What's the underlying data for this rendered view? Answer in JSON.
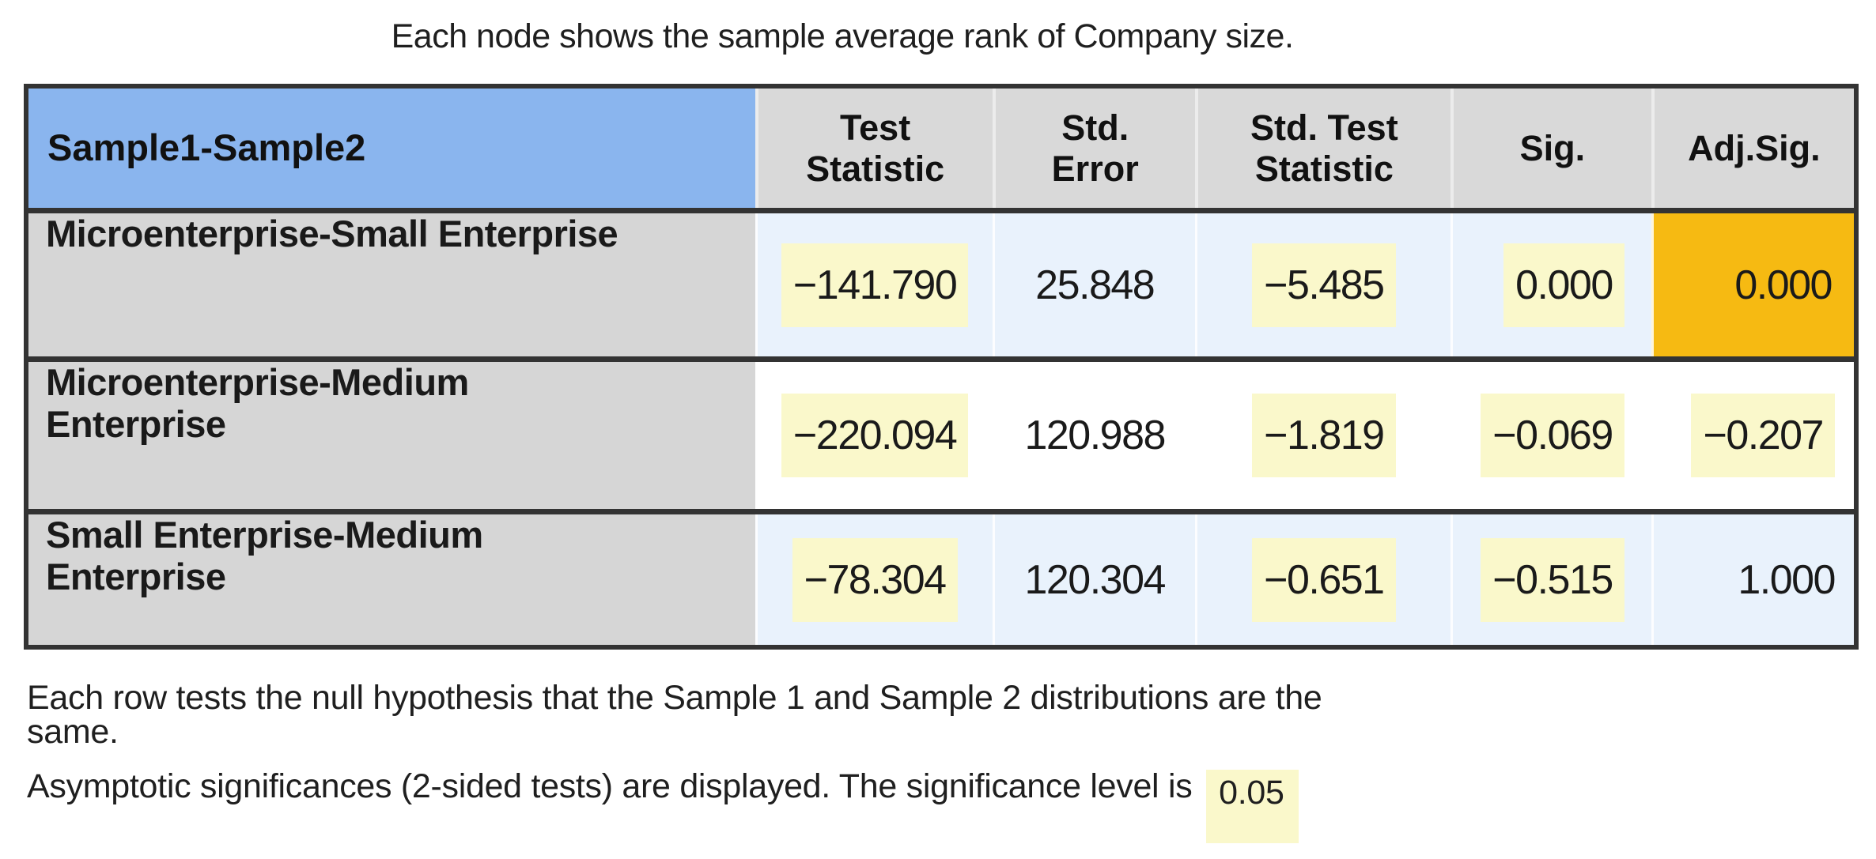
{
  "title": "Each node shows the sample average rank of Company size.",
  "table": {
    "headers": [
      {
        "line1": "Sample1-Sample2",
        "line2": ""
      },
      {
        "line1": "Test",
        "line2": "Statistic"
      },
      {
        "line1": "Std.",
        "line2": "Error"
      },
      {
        "line1": "Std. Test",
        "line2": "Statistic"
      },
      {
        "line1": "Sig.",
        "line2": ""
      },
      {
        "line1": "Adj.Sig.",
        "line2": ""
      }
    ],
    "rows": [
      {
        "label": [
          "Microenterprise-Small Enterprise",
          ""
        ],
        "test_statistic": "−141.790",
        "std_error": "25.848",
        "std_test_statistic": "−5.485",
        "sig": "0.000",
        "adj_sig": "0.000"
      },
      {
        "label": [
          "Microenterprise-Medium",
          "Enterprise"
        ],
        "test_statistic": "−220.094",
        "std_error": "120.988",
        "std_test_statistic": "−1.819",
        "sig": "−0.069",
        "adj_sig": "−0.207"
      },
      {
        "label": [
          "Small Enterprise-Medium",
          "Enterprise"
        ],
        "test_statistic": "−78.304",
        "std_error": "120.304",
        "std_test_statistic": "−0.651",
        "sig": "−0.515",
        "adj_sig": "1.000"
      }
    ]
  },
  "footer": {
    "line1": "Each row tests the null hypothesis that the Sample 1 and Sample 2 distributions are the",
    "line2": "same.",
    "line3": "Asymptotic significances (2-sided tests) are displayed. The significance level is",
    "sig_level": "0.05"
  },
  "colors": {
    "header_blue": "#8ab5ee",
    "header_gray": "#d9d9d9",
    "label_gray": "#d6d6d6",
    "row_light_blue": "#e9f2fc",
    "row_white": "#ffffff",
    "highlight_yellow": "#faf8cb",
    "highlight_orange": "#f6ba12",
    "border_dark": "#333333"
  },
  "chart_data": {
    "type": "table",
    "title": "Each node shows the sample average rank of Company size.",
    "columns": [
      "Sample1-Sample2",
      "Test Statistic",
      "Std. Error",
      "Std. Test Statistic",
      "Sig.",
      "Adj.Sig."
    ],
    "rows": [
      [
        "Microenterprise-Small Enterprise",
        -141.79,
        25.848,
        -5.485,
        0.0,
        0.0
      ],
      [
        "Microenterprise-Medium Enterprise",
        -220.094,
        120.988,
        -1.819,
        -0.069,
        -0.207
      ],
      [
        "Small Enterprise-Medium Enterprise",
        -78.304,
        120.304,
        -0.651,
        -0.515,
        1.0
      ]
    ],
    "highlighted_yellow_cells": [
      [
        "row0",
        "Test Statistic"
      ],
      [
        "row0",
        "Std. Test Statistic"
      ],
      [
        "row0",
        "Sig."
      ],
      [
        "row1",
        "Test Statistic"
      ],
      [
        "row1",
        "Std. Test Statistic"
      ],
      [
        "row1",
        "Sig."
      ],
      [
        "row1",
        "Adj.Sig."
      ],
      [
        "row2",
        "Test Statistic"
      ],
      [
        "row2",
        "Std. Test Statistic"
      ],
      [
        "row2",
        "Sig."
      ]
    ],
    "highlighted_orange_cells": [
      [
        "row0",
        "Adj.Sig."
      ]
    ],
    "footnotes": [
      "Each row tests the null hypothesis that the Sample 1 and Sample 2 distributions are the same.",
      "Asymptotic significances (2-sided tests) are displayed. The significance level is 0.05"
    ],
    "significance_level": 0.05
  }
}
